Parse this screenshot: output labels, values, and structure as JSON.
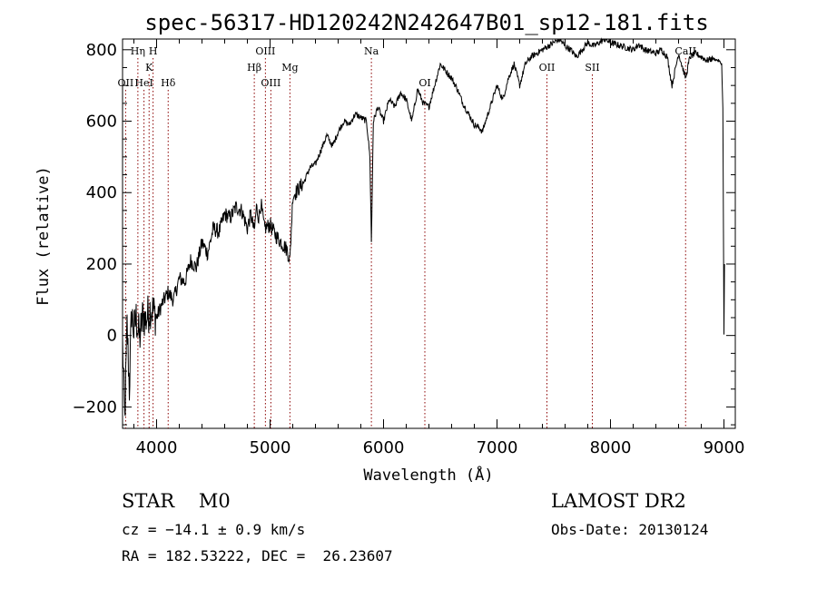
{
  "chart_data": {
    "type": "line",
    "title": "spec-56317-HD120242N242647B01_sp12-181.fits",
    "xlabel": "Wavelength (Å)",
    "ylabel": "Flux (relative)",
    "xlim": [
      3700,
      9100
    ],
    "ylim": [
      -260,
      830
    ],
    "xticks": [
      4000,
      5000,
      6000,
      7000,
      8000,
      9000
    ],
    "yticks": [
      -200,
      0,
      200,
      400,
      600,
      800
    ],
    "grid": false,
    "line_color": "#000000",
    "marker_color": "#8b0000",
    "series": [
      {
        "x": [
          3700,
          3720,
          3740,
          3760,
          3780,
          3800,
          3820,
          3850,
          3880,
          3900,
          3950,
          4000,
          4050,
          4100,
          4150,
          4200,
          4250,
          4300,
          4350,
          4400,
          4450,
          4500,
          4550,
          4600,
          4650,
          4700,
          4750,
          4800,
          4830,
          4861,
          4880,
          4900,
          4920,
          4950,
          5000,
          5050,
          5100,
          5150,
          5175,
          5200,
          5250,
          5300,
          5350,
          5400,
          5450,
          5500,
          5550,
          5600,
          5650,
          5700,
          5750,
          5800,
          5850,
          5880,
          5893,
          5910,
          5950,
          6000,
          6050,
          6100,
          6150,
          6200,
          6250,
          6300,
          6350,
          6400,
          6450,
          6500,
          6550,
          6600,
          6650,
          6700,
          6750,
          6800,
          6850,
          6870,
          6900,
          6950,
          7000,
          7050,
          7100,
          7150,
          7200,
          7250,
          7300,
          7350,
          7400,
          7450,
          7500,
          7550,
          7600,
          7650,
          7700,
          7750,
          7800,
          7850,
          7900,
          7950,
          8000,
          8050,
          8100,
          8150,
          8200,
          8250,
          8300,
          8350,
          8400,
          8450,
          8500,
          8542,
          8600,
          8662,
          8700,
          8750,
          8800,
          8850,
          8900,
          8950,
          8980,
          8990,
          9000,
          9005
        ],
        "y": [
          -20,
          -240,
          30,
          -150,
          70,
          10,
          50,
          -10,
          60,
          40,
          80,
          50,
          90,
          120,
          100,
          160,
          150,
          210,
          190,
          260,
          230,
          300,
          290,
          340,
          330,
          360,
          350,
          300,
          340,
          290,
          360,
          330,
          370,
          300,
          310,
          280,
          260,
          240,
          210,
          390,
          410,
          430,
          470,
          480,
          520,
          560,
          530,
          570,
          600,
          590,
          620,
          610,
          600,
          500,
          260,
          600,
          640,
          600,
          660,
          640,
          680,
          660,
          600,
          690,
          650,
          640,
          700,
          760,
          740,
          720,
          690,
          650,
          620,
          590,
          580,
          570,
          600,
          650,
          700,
          660,
          720,
          760,
          700,
          760,
          780,
          790,
          800,
          810,
          820,
          830,
          810,
          800,
          780,
          800,
          820,
          810,
          820,
          830,
          820,
          815,
          810,
          805,
          800,
          815,
          800,
          795,
          790,
          800,
          780,
          700,
          790,
          720,
          780,
          790,
          780,
          770,
          775,
          770,
          760,
          640,
          0,
          200
        ]
      }
    ],
    "line_markers": [
      {
        "label": "OII",
        "x": 3727,
        "row": 3
      },
      {
        "label": "Hη",
        "x": 3835,
        "row": 1
      },
      {
        "label": "HeI",
        "x": 3889,
        "row": 3
      },
      {
        "label": "K",
        "x": 3934,
        "row": 2
      },
      {
        "label": "H",
        "x": 3969,
        "row": 1
      },
      {
        "label": "Hδ",
        "x": 4102,
        "row": 3
      },
      {
        "label": "Hβ",
        "x": 4861,
        "row": 2
      },
      {
        "label": "OIII",
        "x": 4959,
        "row": 1
      },
      {
        "label": "OIII",
        "x": 5007,
        "row": 3
      },
      {
        "label": "Mg",
        "x": 5175,
        "row": 2
      },
      {
        "label": "Na",
        "x": 5893,
        "row": 1
      },
      {
        "label": "OI",
        "x": 6364,
        "row": 3
      },
      {
        "label": "OII",
        "x": 7440,
        "row": 2
      },
      {
        "label": "SII",
        "x": 7840,
        "row": 2
      },
      {
        "label": "CaII",
        "x": 8662,
        "row": 1
      }
    ]
  },
  "info": {
    "class_line": "STAR    M0",
    "cz_line": "cz = −14.1 ± 0.9 km/s",
    "radec_line": "RA = 182.53222, DEC =  26.23607",
    "survey": "LAMOST DR2",
    "obs_date": "Obs-Date: 20130124"
  }
}
